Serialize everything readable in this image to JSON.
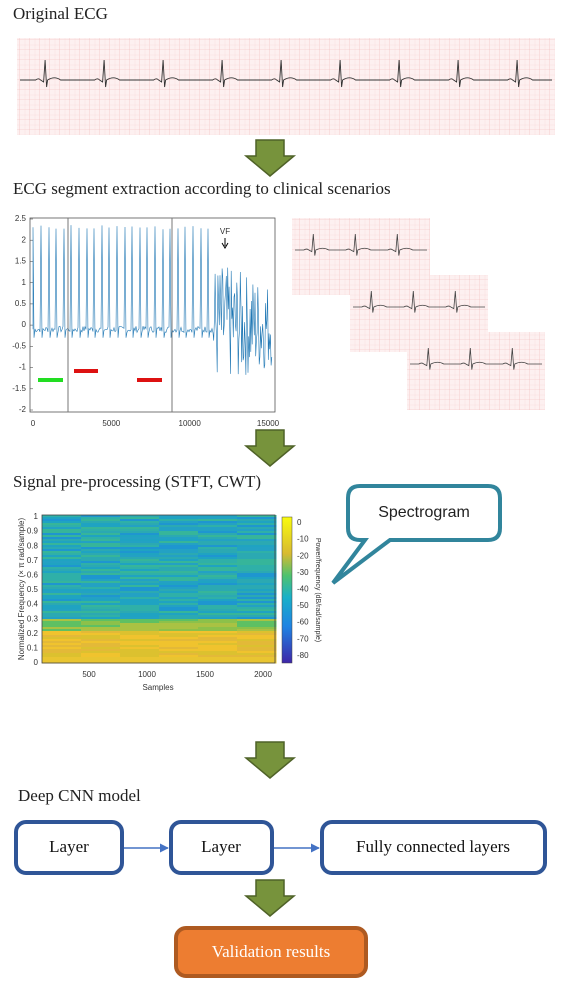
{
  "original_ecg": {
    "title": "Original ECG"
  },
  "segment_extraction": {
    "title": "ECG segment extraction according to clinical scenarios",
    "plot": {
      "yticks": [
        "2.5",
        "2",
        "1.5",
        "1",
        "0.5",
        "0",
        "-0.5",
        "-1",
        "-1.5",
        "-2"
      ],
      "xticks": [
        "0",
        "5000",
        "10000",
        "15000"
      ],
      "annotation": "VF"
    }
  },
  "preprocessing": {
    "title": "Signal pre-processing (STFT, CWT)",
    "callout": "Spectrogram",
    "plot": {
      "ylabel": "Normalized Frequency (× π rad/sample)",
      "yticks": [
        "0",
        "0.1",
        "0.2",
        "0.3",
        "0.4",
        "0.5",
        "0.6",
        "0.7",
        "0.8",
        "0.9",
        "1"
      ],
      "xlabel": "Samples",
      "xticks": [
        "500",
        "1000",
        "1500",
        "2000"
      ],
      "colorbar_label": "Power/frequency (dB/rad/sample)",
      "colorbar_ticks": [
        "0",
        "-10",
        "-20",
        "-30",
        "-40",
        "-50",
        "-60",
        "-70",
        "-80"
      ]
    }
  },
  "cnn": {
    "title": "Deep CNN model",
    "nodes": [
      {
        "label": "Layer"
      },
      {
        "label": "Layer"
      },
      {
        "label": "Fully connected layers"
      }
    ]
  },
  "result": {
    "label": "Validation results"
  }
}
